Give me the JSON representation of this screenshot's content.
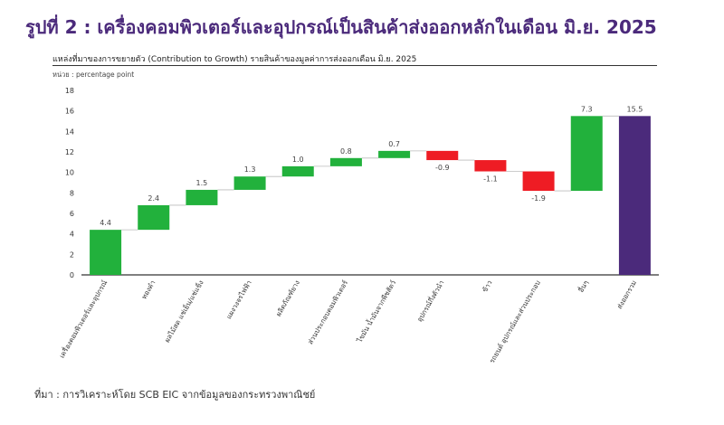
{
  "header": {
    "title": "รูปที่ 2 : เครื่องคอมพิวเตอร์และอุปกรณ์เป็นสินค้าส่งออกหลักในเดือน มิ.ย. 2025",
    "subtitle": "แหล่งที่มาของการขยายตัว (Contribution to Growth) รายสินค้าของมูลค่าการส่งออกเดือน มิ.ย. 2025",
    "unit": "หน่วย : percentage point"
  },
  "footer": {
    "source": "ที่มา : การวิเคราะห์โดย SCB EIC จากข้อมูลของกระทรวงพาณิชย์"
  },
  "colors": {
    "positive": "#22b13c",
    "negative": "#ee1c24",
    "total": "#4b2a7b",
    "connector": "#bbbbbb",
    "axis": "#333333"
  },
  "chart_data": {
    "type": "waterfall",
    "title": "แหล่งที่มาของการขยายตัว (Contribution to Growth) รายสินค้าของมูลค่าการส่งออกเดือน มิ.ย. 2025",
    "ylabel": "หน่วย : percentage point",
    "ylim": [
      0,
      18
    ],
    "yticks": [
      0,
      2,
      4,
      6,
      8,
      10,
      12,
      14,
      16,
      18
    ],
    "categories": [
      "เครื่องคอมพิวเตอร์และอุปกรณ์",
      "ทองคำ",
      "ผลไม้สด แช่เย็น/แช่แข็ง",
      "แผงวงจรไฟฟ้า",
      "ผลิตภัณฑ์ยาง",
      "ส่วนประกอบคอมพิวเตอร์",
      "ไขมัน น้ำมันจากพืชสัตว์",
      "อุปกรณ์กึ่งตัวนำ",
      "ข้าว",
      "รถยนต์ อุปกรณ์และส่วนประกอบ",
      "อื่นๆ",
      "ส่งออกรวม"
    ],
    "values": [
      4.4,
      2.4,
      1.5,
      1.3,
      1.0,
      0.8,
      0.7,
      -0.9,
      -1.1,
      -1.9,
      7.3,
      15.5
    ],
    "value_labels": [
      "4.4",
      "2.4",
      "1.5",
      "1.3",
      "1.0",
      "0.8",
      "0.7",
      "-0.9",
      "-1.1",
      "-1.9",
      "7.3",
      "15.5"
    ],
    "total_index": 11,
    "grid": false
  }
}
